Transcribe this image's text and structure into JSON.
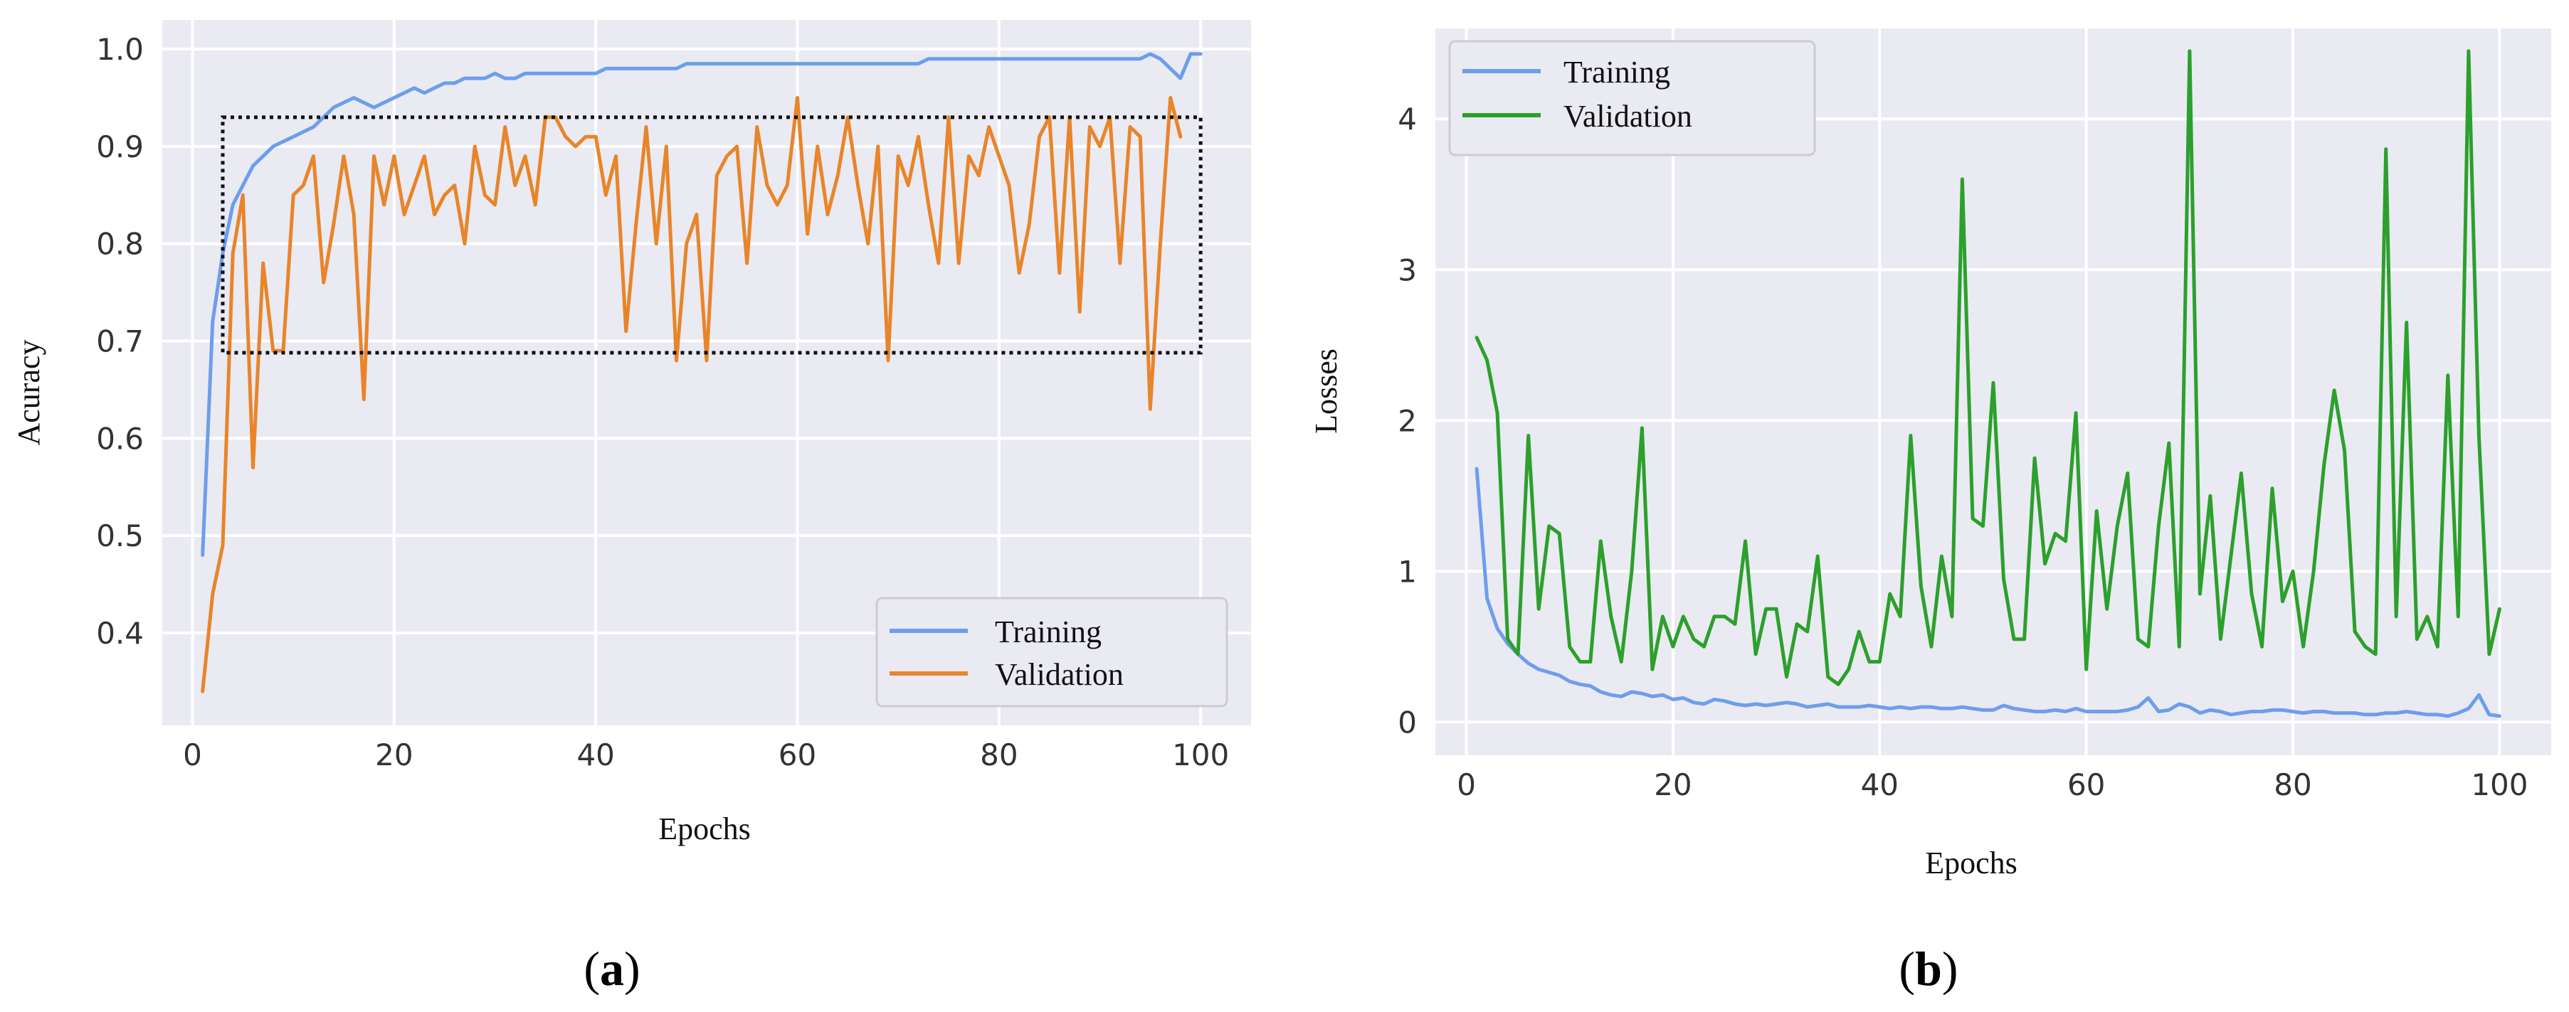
{
  "chart_data": [
    {
      "type": "line",
      "panel_label": "a",
      "xlabel": "Epochs",
      "ylabel": "Acuracy",
      "xlim": [
        -3,
        105
      ],
      "ylim": [
        0.305,
        1.03
      ],
      "xticks": [
        0,
        20,
        40,
        60,
        80,
        100
      ],
      "yticks": [
        0.4,
        0.5,
        0.6,
        0.7,
        0.8,
        0.9,
        1.0
      ],
      "ytick_labels": [
        "0.4",
        "0.5",
        "0.6",
        "0.7",
        "0.8",
        "0.9",
        "1.0"
      ],
      "grid": true,
      "legend": "bottom-right",
      "annotation_box": {
        "x": [
          3,
          100
        ],
        "y": [
          0.688,
          0.93
        ]
      },
      "series": [
        {
          "name": "Training",
          "color": "#6d9eeb",
          "values": [
            0.48,
            0.72,
            0.79,
            0.84,
            0.86,
            0.88,
            0.89,
            0.9,
            0.905,
            0.91,
            0.915,
            0.92,
            0.93,
            0.94,
            0.945,
            0.95,
            0.945,
            0.94,
            0.945,
            0.95,
            0.955,
            0.96,
            0.955,
            0.96,
            0.965,
            0.965,
            0.97,
            0.97,
            0.97,
            0.975,
            0.97,
            0.97,
            0.975,
            0.975,
            0.975,
            0.975,
            0.975,
            0.975,
            0.975,
            0.975,
            0.98,
            0.98,
            0.98,
            0.98,
            0.98,
            0.98,
            0.98,
            0.98,
            0.985,
            0.985,
            0.985,
            0.985,
            0.985,
            0.985,
            0.985,
            0.985,
            0.985,
            0.985,
            0.985,
            0.985,
            0.985,
            0.985,
            0.985,
            0.985,
            0.985,
            0.985,
            0.985,
            0.985,
            0.985,
            0.985,
            0.985,
            0.985,
            0.99,
            0.99,
            0.99,
            0.99,
            0.99,
            0.99,
            0.99,
            0.99,
            0.99,
            0.99,
            0.99,
            0.99,
            0.99,
            0.99,
            0.99,
            0.99,
            0.99,
            0.99,
            0.99,
            0.99,
            0.99,
            0.99,
            0.995,
            0.99,
            0.98,
            0.97,
            0.995,
            0.995
          ]
        },
        {
          "name": "Validation",
          "color": "#e8852a",
          "values": [
            0.34,
            0.44,
            0.49,
            0.79,
            0.85,
            0.57,
            0.78,
            0.69,
            0.69,
            0.85,
            0.86,
            0.89,
            0.76,
            0.82,
            0.89,
            0.83,
            0.64,
            0.89,
            0.84,
            0.89,
            0.83,
            0.86,
            0.89,
            0.83,
            0.85,
            0.86,
            0.8,
            0.9,
            0.85,
            0.84,
            0.92,
            0.86,
            0.89,
            0.84,
            0.93,
            0.93,
            0.91,
            0.9,
            0.91,
            0.91,
            0.85,
            0.89,
            0.71,
            0.82,
            0.92,
            0.8,
            0.9,
            0.68,
            0.8,
            0.83,
            0.68,
            0.87,
            0.89,
            0.9,
            0.78,
            0.92,
            0.86,
            0.84,
            0.86,
            0.95,
            0.81,
            0.9,
            0.83,
            0.87,
            0.93,
            0.86,
            0.8,
            0.9,
            0.68,
            0.89,
            0.86,
            0.91,
            0.84,
            0.78,
            0.93,
            0.78,
            0.89,
            0.87,
            0.92,
            0.89,
            0.86,
            0.77,
            0.82,
            0.91,
            0.93,
            0.77,
            0.93,
            0.73,
            0.92,
            0.9,
            0.93,
            0.78,
            0.92,
            0.91,
            0.63,
            0.8,
            0.95,
            0.91
          ]
        }
      ]
    },
    {
      "type": "line",
      "panel_label": "b",
      "xlabel": "Epochs",
      "ylabel": "Losses",
      "xlim": [
        -3,
        105
      ],
      "ylim": [
        -0.22,
        4.6
      ],
      "xticks": [
        0,
        20,
        40,
        60,
        80,
        100
      ],
      "yticks": [
        0,
        1,
        2,
        3,
        4
      ],
      "ytick_labels": [
        "0",
        "1",
        "2",
        "3",
        "4"
      ],
      "grid": true,
      "legend": "top-left",
      "series": [
        {
          "name": "Training",
          "color": "#6d9eeb",
          "values": [
            1.68,
            0.82,
            0.62,
            0.52,
            0.45,
            0.39,
            0.35,
            0.33,
            0.31,
            0.27,
            0.25,
            0.24,
            0.2,
            0.18,
            0.17,
            0.2,
            0.19,
            0.17,
            0.18,
            0.15,
            0.16,
            0.13,
            0.12,
            0.15,
            0.14,
            0.12,
            0.11,
            0.12,
            0.11,
            0.12,
            0.13,
            0.12,
            0.1,
            0.11,
            0.12,
            0.1,
            0.1,
            0.1,
            0.11,
            0.1,
            0.09,
            0.1,
            0.09,
            0.1,
            0.1,
            0.09,
            0.09,
            0.1,
            0.09,
            0.08,
            0.08,
            0.11,
            0.09,
            0.08,
            0.07,
            0.07,
            0.08,
            0.07,
            0.09,
            0.07,
            0.07,
            0.07,
            0.07,
            0.08,
            0.1,
            0.16,
            0.07,
            0.08,
            0.12,
            0.1,
            0.06,
            0.08,
            0.07,
            0.05,
            0.06,
            0.07,
            0.07,
            0.08,
            0.08,
            0.07,
            0.06,
            0.07,
            0.07,
            0.06,
            0.06,
            0.06,
            0.05,
            0.05,
            0.06,
            0.06,
            0.07,
            0.06,
            0.05,
            0.05,
            0.04,
            0.06,
            0.09,
            0.18,
            0.05,
            0.04
          ]
        },
        {
          "name": "Validation",
          "color": "#2ca02c",
          "values": [
            2.55,
            2.4,
            2.05,
            0.55,
            0.45,
            1.9,
            0.75,
            1.3,
            1.25,
            0.5,
            0.4,
            0.4,
            1.2,
            0.7,
            0.4,
            1.0,
            1.95,
            0.35,
            0.7,
            0.5,
            0.7,
            0.55,
            0.5,
            0.7,
            0.7,
            0.65,
            1.2,
            0.45,
            0.75,
            0.75,
            0.3,
            0.65,
            0.6,
            1.1,
            0.3,
            0.25,
            0.35,
            0.6,
            0.4,
            0.4,
            0.85,
            0.7,
            1.9,
            0.9,
            0.5,
            1.1,
            0.7,
            3.6,
            1.35,
            1.3,
            2.25,
            0.95,
            0.55,
            0.55,
            1.75,
            1.05,
            1.25,
            1.2,
            2.05,
            0.35,
            1.4,
            0.75,
            1.3,
            1.65,
            0.55,
            0.5,
            1.3,
            1.85,
            0.5,
            4.45,
            0.85,
            1.5,
            0.55,
            1.1,
            1.65,
            0.85,
            0.5,
            1.55,
            0.8,
            1.0,
            0.5,
            1.0,
            1.7,
            2.2,
            1.8,
            0.6,
            0.5,
            0.45,
            3.8,
            0.7,
            2.65,
            0.55,
            0.7,
            0.5,
            2.3,
            0.7,
            4.45,
            1.9,
            0.45,
            0.75
          ]
        }
      ]
    }
  ]
}
